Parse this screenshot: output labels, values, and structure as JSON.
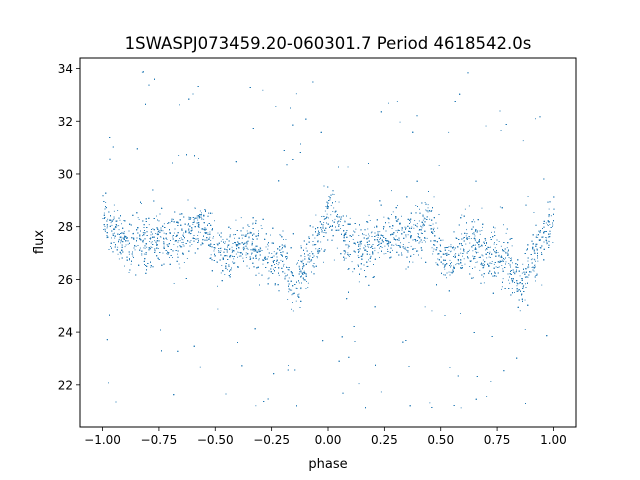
{
  "chart_data": {
    "type": "scatter",
    "title": "1SWASPJ073459.20-060301.7 Period 4618542.0s",
    "xlabel": "phase",
    "ylabel": "flux",
    "xlim": [
      -1.1,
      1.1
    ],
    "ylim": [
      20.4,
      34.4
    ],
    "xticks": [
      -1.0,
      -0.75,
      -0.5,
      -0.25,
      0.0,
      0.25,
      0.5,
      0.75,
      1.0
    ],
    "xtick_labels": [
      "−1.00",
      "−0.75",
      "−0.50",
      "−0.25",
      "0.00",
      "0.25",
      "0.50",
      "0.75",
      "1.00"
    ],
    "yticks": [
      22,
      24,
      26,
      28,
      30,
      32,
      34
    ],
    "ytick_labels": [
      "22",
      "24",
      "26",
      "28",
      "30",
      "32",
      "34"
    ],
    "grid": false,
    "legend": "none",
    "marker": "point",
    "color": "#1f77b4",
    "x_range": [
      -1.0,
      1.0
    ],
    "y_range": [
      21.0,
      33.9
    ],
    "series": [
      {
        "phase": [
          -1.0,
          -0.95,
          -0.9,
          -0.85,
          -0.8,
          -0.75,
          -0.7,
          -0.65,
          -0.6,
          -0.55,
          -0.5,
          -0.45,
          -0.4,
          -0.35,
          -0.3,
          -0.25,
          -0.2,
          -0.15,
          -0.1,
          -0.05,
          0.0,
          0.05,
          0.1,
          0.15,
          0.2,
          0.25,
          0.3,
          0.35,
          0.4,
          0.45,
          0.5,
          0.55,
          0.6,
          0.65,
          0.7,
          0.75,
          0.8,
          0.85,
          0.9,
          0.95,
          1.0
        ],
        "flux": [
          28.6,
          28.0,
          27.4,
          27.3,
          27.4,
          27.7,
          27.6,
          27.5,
          28.0,
          28.2,
          27.0,
          26.8,
          27.3,
          27.4,
          26.9,
          26.8,
          26.8,
          25.6,
          26.7,
          27.4,
          28.6,
          28.0,
          27.4,
          27.3,
          27.4,
          27.7,
          27.6,
          27.5,
          28.0,
          28.2,
          27.0,
          26.8,
          27.3,
          27.4,
          26.9,
          26.8,
          26.8,
          25.6,
          26.7,
          27.4,
          28.6
        ]
      }
    ],
    "scatter_density": {
      "spread": 0.7,
      "outlier_fraction": 0.08,
      "count": 9000
    }
  }
}
